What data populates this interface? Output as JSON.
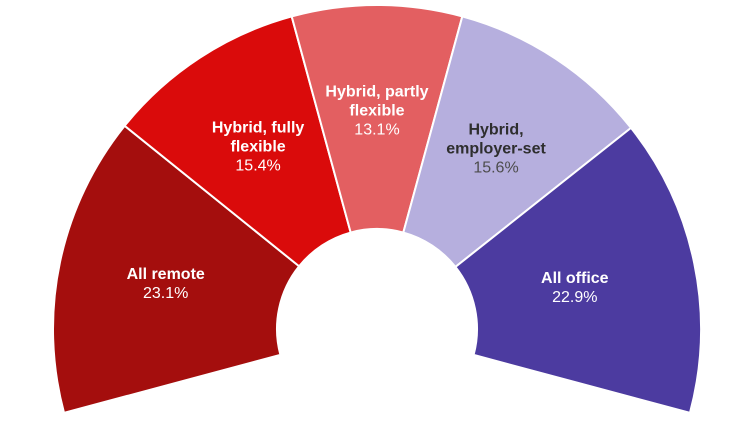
{
  "chart_data": {
    "type": "pie",
    "variant": "half-donut-gauge",
    "title": "",
    "legend": "none",
    "background_color": "#FFFFFF",
    "separator_color": "#FFFFFF",
    "layout": {
      "start_angle_deg": -105,
      "total_sweep_deg": 210,
      "donut_hole": true
    },
    "categories": [
      "All remote",
      "Hybrid, fully flexible",
      "Hybrid, partly flexible",
      "Hybrid, employer-set",
      "All office"
    ],
    "values": [
      23.1,
      15.4,
      13.1,
      15.6,
      22.9
    ],
    "segments": [
      {
        "slug": "all-remote",
        "label": "All remote",
        "label_lines": [
          "All remote"
        ],
        "value": 23.1,
        "value_label": "23.1%",
        "color": "#A40E0D",
        "text_color": "#FFFFFF",
        "pct_color": "#FFFFFF"
      },
      {
        "slug": "hybrid-fully-flexible",
        "label": "Hybrid, fully flexible",
        "label_lines": [
          "Hybrid, fully",
          "flexible"
        ],
        "value": 15.4,
        "value_label": "15.4%",
        "color": "#DA0B0B",
        "text_color": "#FFFFFF",
        "pct_color": "#FFFFFF"
      },
      {
        "slug": "hybrid-partly-flexible",
        "label": "Hybrid, partly flexible",
        "label_lines": [
          "Hybrid, partly",
          "flexible"
        ],
        "value": 13.1,
        "value_label": "13.1%",
        "color": "#E35F61",
        "text_color": "#FFFFFF",
        "pct_color": "#FFFFFF"
      },
      {
        "slug": "hybrid-employer-set",
        "label": "Hybrid, employer-set",
        "label_lines": [
          "Hybrid,",
          "employer-set"
        ],
        "value": 15.6,
        "value_label": "15.6%",
        "color": "#B6AFDE",
        "text_color": "#2E2E2E",
        "pct_color": "#4D4D4D"
      },
      {
        "slug": "all-office",
        "label": "All office",
        "label_lines": [
          "All office"
        ],
        "value": 22.9,
        "value_label": "22.9%",
        "color": "#4C3BA0",
        "text_color": "#FFFFFF",
        "pct_color": "#FFFFFF"
      }
    ]
  }
}
